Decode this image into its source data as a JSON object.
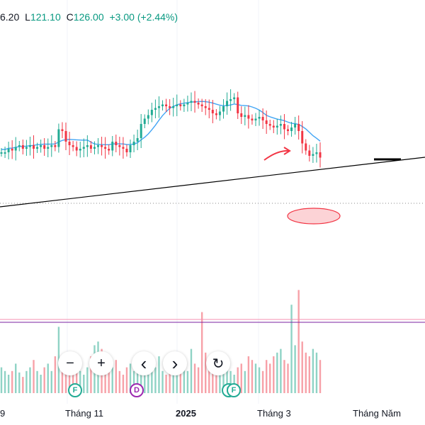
{
  "header": {
    "high_partial": "6.20",
    "low_label": "L",
    "low_value": "121.10",
    "close_label": "C",
    "close_value": "126.00",
    "change": "+3.00 (+2.44%)"
  },
  "time_axis": {
    "labels": [
      "9",
      "Tháng 11",
      "2025",
      "Tháng 3",
      "Tháng Năm"
    ]
  },
  "controls": {
    "zoom_out": "−",
    "zoom_in": "+",
    "scroll_left": "‹",
    "scroll_right": "›",
    "reset": "↻"
  },
  "events": [
    {
      "type": "earnings",
      "letter": "F"
    },
    {
      "type": "dividend",
      "letter": "D"
    },
    {
      "type": "earnings",
      "letter": "F"
    },
    {
      "type": "earnings",
      "letter": "F"
    }
  ],
  "colors": {
    "up": "#22ab94",
    "down": "#f23645",
    "ma": "#42a5f5",
    "volume_up": "#8fd3c5",
    "volume_down": "#f7a1a8",
    "trendline": "#000000",
    "annotation": "#f23645",
    "separator_pink": "#f48fb1",
    "separator_purple": "#7b1fa2"
  },
  "chart_data": {
    "type": "candlestick",
    "x_axis": "date",
    "x_ticks": [
      "Tháng 11",
      "2025",
      "Tháng 3",
      "Tháng Năm"
    ],
    "last_close": 126.0,
    "change": 3.0,
    "change_pct": 2.44,
    "series": [
      {
        "name": "price",
        "kind": "candles"
      },
      {
        "name": "moving_average",
        "kind": "line"
      },
      {
        "name": "volume",
        "kind": "bars"
      }
    ],
    "price_path": [
      0.46,
      0.46,
      0.44,
      0.45,
      0.43,
      0.42,
      0.44,
      0.43,
      0.42,
      0.44,
      0.43,
      0.42,
      0.44,
      0.43,
      0.42,
      0.43,
      0.33,
      0.34,
      0.4,
      0.42,
      0.43,
      0.45,
      0.44,
      0.43,
      0.42,
      0.44,
      0.43,
      0.42,
      0.43,
      0.44,
      0.45,
      0.4,
      0.42,
      0.43,
      0.44,
      0.46,
      0.42,
      0.4,
      0.38,
      0.3,
      0.27,
      0.25,
      0.22,
      0.21,
      0.2,
      0.19,
      0.2,
      0.21,
      0.2,
      0.19,
      0.2,
      0.19,
      0.18,
      0.17,
      0.18,
      0.19,
      0.2,
      0.21,
      0.22,
      0.24,
      0.25,
      0.23,
      0.2,
      0.17,
      0.16,
      0.15,
      0.24,
      0.26,
      0.25,
      0.27,
      0.28,
      0.27,
      0.26,
      0.28,
      0.3,
      0.31,
      0.32,
      0.31,
      0.3,
      0.33,
      0.34,
      0.32,
      0.3,
      0.34,
      0.41,
      0.45,
      0.48,
      0.47,
      0.46,
      0.49
    ],
    "volume_path": [
      0.35,
      0.3,
      0.25,
      0.3,
      0.4,
      0.28,
      0.22,
      0.3,
      0.35,
      0.45,
      0.3,
      0.25,
      0.35,
      0.4,
      0.3,
      0.5,
      0.9,
      0.35,
      0.3,
      0.28,
      0.4,
      0.45,
      0.3,
      0.25,
      0.35,
      0.5,
      0.65,
      0.7,
      0.6,
      0.4,
      0.3,
      0.35,
      0.45,
      0.3,
      0.25,
      0.35,
      0.4,
      0.3,
      0.35,
      0.3,
      0.4,
      0.25,
      0.3,
      0.35,
      0.5,
      0.3,
      0.25,
      0.3,
      0.4,
      0.35,
      0.3,
      0.45,
      0.3,
      0.6,
      0.4,
      0.35,
      1.1,
      0.55,
      0.5,
      0.4,
      0.35,
      0.3,
      0.4,
      0.35,
      0.3,
      0.25,
      0.35,
      0.4,
      0.3,
      0.5,
      0.45,
      0.4,
      0.35,
      0.3,
      0.45,
      0.4,
      0.5,
      0.55,
      0.6,
      0.45,
      0.4,
      1.2,
      0.65,
      1.4,
      0.7,
      0.55,
      0.5,
      0.6,
      0.55,
      0.45
    ]
  }
}
